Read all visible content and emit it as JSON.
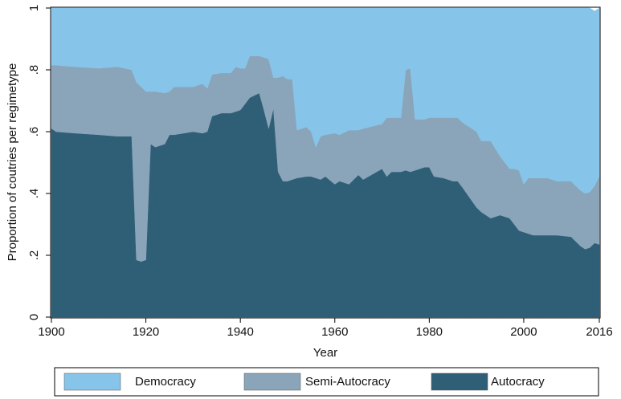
{
  "chart_data": {
    "type": "stacked_area",
    "y_label": "Proportion of coutries per regimetype",
    "x_label": "Year",
    "x": [
      1900,
      1901,
      1905,
      1910,
      1914,
      1917,
      1918,
      1919,
      1920,
      1921,
      1922,
      1924,
      1925,
      1926,
      1930,
      1932,
      1933,
      1934,
      1936,
      1938,
      1939,
      1940,
      1941,
      1942,
      1944,
      1945,
      1946,
      1947,
      1948,
      1949,
      1950,
      1951,
      1952,
      1954,
      1955,
      1956,
      1957,
      1958,
      1960,
      1961,
      1963,
      1965,
      1966,
      1970,
      1971,
      1972,
      1974,
      1975,
      1976,
      1977,
      1979,
      1980,
      1981,
      1983,
      1985,
      1986,
      1987,
      1990,
      1991,
      1993,
      1995,
      1997,
      1998,
      1999,
      2000,
      2001,
      2002,
      2005,
      2007,
      2010,
      2012,
      2013,
      2014,
      2015,
      2016
    ],
    "series": [
      {
        "name": "Democracy",
        "color": "#86c5e9",
        "values": [
          0.185,
          0.185,
          0.19,
          0.195,
          0.19,
          0.2,
          0.24,
          0.255,
          0.27,
          0.27,
          0.27,
          0.275,
          0.27,
          0.255,
          0.255,
          0.245,
          0.26,
          0.215,
          0.21,
          0.21,
          0.19,
          0.195,
          0.195,
          0.155,
          0.155,
          0.16,
          0.165,
          0.225,
          0.225,
          0.22,
          0.23,
          0.23,
          0.395,
          0.385,
          0.4,
          0.45,
          0.415,
          0.41,
          0.405,
          0.41,
          0.395,
          0.395,
          0.39,
          0.375,
          0.355,
          0.355,
          0.355,
          0.2,
          0.195,
          0.36,
          0.36,
          0.355,
          0.355,
          0.355,
          0.355,
          0.355,
          0.37,
          0.4,
          0.43,
          0.43,
          0.48,
          0.52,
          0.52,
          0.525,
          0.57,
          0.55,
          0.55,
          0.55,
          0.56,
          0.56,
          0.59,
          0.6,
          0.595,
          0.565,
          0.545
        ]
      },
      {
        "name": "Semi-Autocracy",
        "color": "#8aa5b9",
        "values": [
          0.205,
          0.215,
          0.215,
          0.215,
          0.225,
          0.215,
          0.575,
          0.565,
          0.545,
          0.17,
          0.18,
          0.165,
          0.14,
          0.155,
          0.145,
          0.16,
          0.14,
          0.135,
          0.13,
          0.13,
          0.145,
          0.135,
          0.115,
          0.135,
          0.12,
          0.17,
          0.225,
          0.1,
          0.305,
          0.34,
          0.33,
          0.325,
          0.155,
          0.16,
          0.145,
          0.1,
          0.14,
          0.135,
          0.165,
          0.15,
          0.175,
          0.145,
          0.165,
          0.145,
          0.19,
          0.175,
          0.175,
          0.325,
          0.335,
          0.165,
          0.155,
          0.16,
          0.19,
          0.195,
          0.205,
          0.205,
          0.21,
          0.245,
          0.23,
          0.25,
          0.19,
          0.16,
          0.18,
          0.195,
          0.155,
          0.18,
          0.185,
          0.185,
          0.175,
          0.18,
          0.18,
          0.18,
          0.18,
          0.185,
          0.22
        ]
      },
      {
        "name": "Autocracy",
        "color": "#2f5f77",
        "values": [
          0.61,
          0.6,
          0.595,
          0.59,
          0.585,
          0.585,
          0.185,
          0.18,
          0.185,
          0.56,
          0.55,
          0.56,
          0.59,
          0.59,
          0.6,
          0.595,
          0.6,
          0.65,
          0.66,
          0.66,
          0.665,
          0.67,
          0.69,
          0.71,
          0.725,
          0.67,
          0.61,
          0.675,
          0.47,
          0.44,
          0.44,
          0.445,
          0.45,
          0.455,
          0.455,
          0.45,
          0.445,
          0.455,
          0.43,
          0.44,
          0.43,
          0.46,
          0.445,
          0.48,
          0.455,
          0.47,
          0.47,
          0.475,
          0.47,
          0.475,
          0.485,
          0.485,
          0.455,
          0.45,
          0.44,
          0.44,
          0.42,
          0.355,
          0.34,
          0.32,
          0.33,
          0.32,
          0.3,
          0.28,
          0.275,
          0.27,
          0.265,
          0.265,
          0.265,
          0.26,
          0.23,
          0.22,
          0.225,
          0.24,
          0.235
        ]
      }
    ],
    "xlim": [
      1900,
      2016
    ],
    "xticks": [
      1900,
      1920,
      1940,
      1960,
      1980,
      2000,
      2016
    ],
    "ylim": [
      0,
      1
    ],
    "yticks": [
      0,
      {
        "value": 0.2,
        "label": ".2"
      },
      {
        "value": 0.4,
        "label": ".4"
      },
      {
        "value": 0.6,
        "label": ".6"
      },
      {
        "value": 0.8,
        "label": ".8"
      },
      1
    ],
    "legend": "bottom"
  }
}
